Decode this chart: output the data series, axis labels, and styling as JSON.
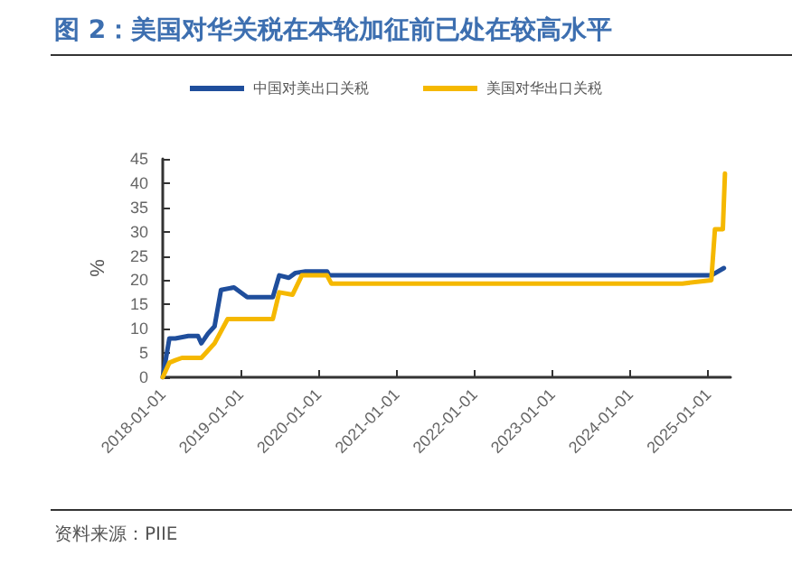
{
  "chart_data": {
    "type": "line",
    "title": "图 2：美国对华关税在本轮加征前已处在较高水平",
    "ylabel": "%",
    "annotations": [
      "资料来源：PIIE"
    ],
    "legend": "top",
    "grid": false,
    "marker": "none",
    "line_style": "solid",
    "xlim": [
      "2018-01-01",
      "2025-04-15"
    ],
    "xticks": [
      "2018-01-01",
      "2019-01-01",
      "2020-01-01",
      "2021-01-01",
      "2022-01-01",
      "2023-01-01",
      "2024-01-01",
      "2025-01-01"
    ],
    "ylim": [
      0,
      45
    ],
    "yticks": [
      0,
      5,
      10,
      15,
      20,
      25,
      30,
      35,
      40,
      45
    ],
    "series": [
      {
        "name": "中国对美出口关税",
        "color": "#1f4e9c",
        "x": [
          "2018-01-01",
          "2018-02-01",
          "2018-03-01",
          "2018-05-01",
          "2018-06-15",
          "2018-07-01",
          "2018-08-01",
          "2018-09-01",
          "2018-10-01",
          "2018-12-01",
          "2019-02-01",
          "2019-06-01",
          "2019-07-01",
          "2019-08-15",
          "2019-09-15",
          "2019-11-01",
          "2020-02-10",
          "2020-02-20",
          "2025-01-15",
          "2025-03-15"
        ],
        "values": [
          0,
          8,
          8,
          8.5,
          8.5,
          7,
          9,
          10.5,
          18,
          18.5,
          16.5,
          16.5,
          21,
          20.5,
          21.5,
          21.8,
          21.8,
          21,
          21,
          22.5
        ]
      },
      {
        "name": "美国对华出口关税",
        "color": "#f5b800",
        "x": [
          "2018-01-01",
          "2018-02-01",
          "2018-03-01",
          "2018-04-01",
          "2018-07-01",
          "2018-09-01",
          "2018-11-01",
          "2019-06-01",
          "2019-07-01",
          "2019-09-01",
          "2019-10-15",
          "2020-02-10",
          "2020-03-01",
          "2024-09-01",
          "2025-01-15",
          "2025-02-01",
          "2025-03-10",
          "2025-03-20"
        ],
        "values": [
          0,
          3,
          3.5,
          4,
          4,
          7,
          12,
          12,
          17.5,
          17,
          21,
          21,
          19.3,
          19.3,
          20,
          30.5,
          30.5,
          42
        ]
      }
    ]
  }
}
